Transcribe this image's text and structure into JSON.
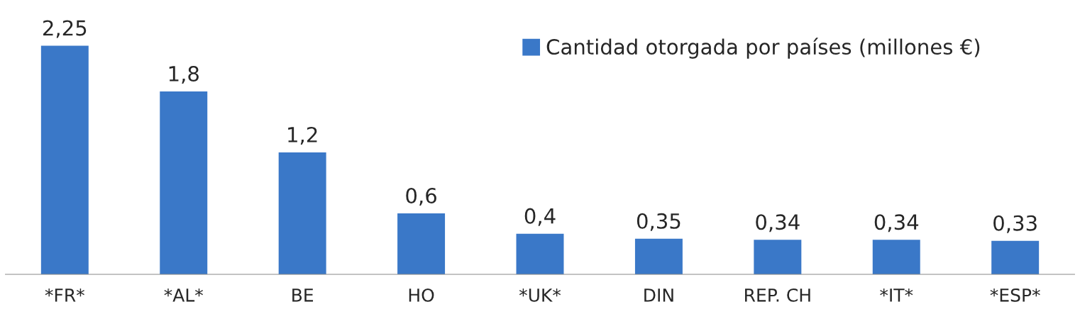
{
  "chart_data": {
    "type": "bar",
    "categories": [
      "*FR*",
      "*AL*",
      "BE",
      "HO",
      "*UK*",
      "DIN",
      "REP. CH",
      "*IT*",
      "*ESP*"
    ],
    "series": [
      {
        "name": "Cantidad otorgada por países (millones €)",
        "color": "#3a78c8",
        "values": [
          2.25,
          1.8,
          1.2,
          0.6,
          0.4,
          0.35,
          0.34,
          0.34,
          0.33
        ],
        "value_labels": [
          "2,25",
          "1,8",
          "1,2",
          "0,6",
          "0,4",
          "0,35",
          "0,34",
          "0,34",
          "0,33"
        ]
      }
    ],
    "relative": false,
    "legend": "top right",
    "grid": false
  }
}
